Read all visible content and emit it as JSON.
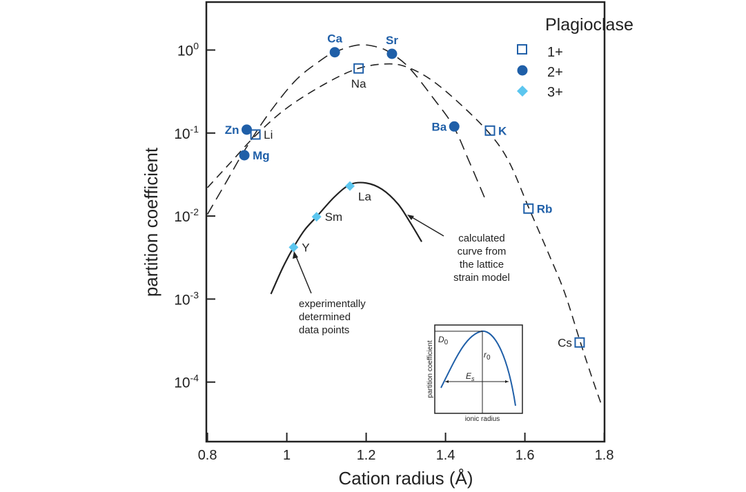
{
  "chart_data": {
    "type": "scatter",
    "title": "",
    "xlabel": "Cation radius (Å)",
    "ylabel": "partition coefficient",
    "xlim": [
      0.8,
      1.8
    ],
    "ylim_log10": [
      -4.7,
      0.58
    ],
    "yscale": "log",
    "x_ticks": [
      0.8,
      1.0,
      1.2,
      1.4,
      1.6,
      1.8
    ],
    "x_tick_labels": [
      "0.8",
      "1",
      "1.2",
      "1.4",
      "1.6",
      "1.8"
    ],
    "y_ticks": [
      {
        "exp": "0",
        "base": "10"
      },
      {
        "exp": "-1",
        "base": "10"
      },
      {
        "exp": "-2",
        "base": "10"
      },
      {
        "exp": "-3",
        "base": "10"
      },
      {
        "exp": "-4",
        "base": "10"
      }
    ],
    "legend": {
      "title": "Plagioclase",
      "placement": "top-right",
      "entries": [
        {
          "label": "1+",
          "marker": "open-square",
          "color": "#1f5fa8"
        },
        {
          "label": "2+",
          "marker": "filled-circle",
          "color": "#1f5fa8"
        },
        {
          "label": "3+",
          "marker": "diamond",
          "color": "#5cc6ef"
        }
      ]
    },
    "series": [
      {
        "name": "1+",
        "points": [
          {
            "label": "Li",
            "x": 0.921,
            "y": 0.096,
            "label_side": "right",
            "label_style": "plain"
          },
          {
            "label": "Na",
            "x": 1.181,
            "y": 0.6,
            "label_side": "below",
            "label_style": "plain"
          },
          {
            "label": "K",
            "x": 1.512,
            "y": 0.107,
            "label_side": "right",
            "label_style": "bold"
          },
          {
            "label": "Rb",
            "x": 1.609,
            "y": 0.0123,
            "label_side": "right",
            "label_style": "bold"
          },
          {
            "label": "Cs",
            "x": 1.738,
            "y": 0.0003,
            "label_side": "left",
            "label_style": "plain"
          }
        ],
        "fit_curve": [
          [
            0.8,
            0.022
          ],
          [
            0.86,
            0.045
          ],
          [
            0.92,
            0.092
          ],
          [
            1.0,
            0.2
          ],
          [
            1.1,
            0.4
          ],
          [
            1.18,
            0.6
          ],
          [
            1.25,
            0.68
          ],
          [
            1.3,
            0.63
          ],
          [
            1.36,
            0.45
          ],
          [
            1.43,
            0.24
          ],
          [
            1.51,
            0.1
          ],
          [
            1.56,
            0.045
          ],
          [
            1.61,
            0.0125
          ],
          [
            1.66,
            0.0035
          ],
          [
            1.7,
            0.0012
          ],
          [
            1.74,
            0.0003
          ],
          [
            1.77,
            0.00011
          ],
          [
            1.795,
            5e-05
          ]
        ]
      },
      {
        "name": "2+",
        "points": [
          {
            "label": "Mg",
            "x": 0.893,
            "y": 0.054,
            "label_side": "right",
            "label_style": "bold"
          },
          {
            "label": "Zn",
            "x": 0.899,
            "y": 0.11,
            "label_side": "left",
            "label_style": "bold"
          },
          {
            "label": "Ca",
            "x": 1.121,
            "y": 0.94,
            "label_side": "above",
            "label_style": "bold"
          },
          {
            "label": "Sr",
            "x": 1.265,
            "y": 0.9,
            "label_side": "above",
            "label_style": "bold"
          },
          {
            "label": "Ba",
            "x": 1.422,
            "y": 0.12,
            "label_side": "left",
            "label_style": "bold"
          }
        ],
        "fit_curve": [
          [
            0.8,
            0.0105
          ],
          [
            0.85,
            0.027
          ],
          [
            0.89,
            0.058
          ],
          [
            0.95,
            0.16
          ],
          [
            1.02,
            0.42
          ],
          [
            1.08,
            0.72
          ],
          [
            1.12,
            0.94
          ],
          [
            1.18,
            1.15
          ],
          [
            1.23,
            1.08
          ],
          [
            1.265,
            0.9
          ],
          [
            1.31,
            0.6
          ],
          [
            1.37,
            0.26
          ],
          [
            1.42,
            0.12
          ],
          [
            1.46,
            0.045
          ],
          [
            1.5,
            0.016
          ]
        ]
      },
      {
        "name": "3+",
        "points": [
          {
            "label": "Y",
            "x": 1.017,
            "y": 0.0042,
            "label_side": "right",
            "label_style": "plain"
          },
          {
            "label": "Sm",
            "x": 1.075,
            "y": 0.0098,
            "label_side": "right",
            "label_style": "plain"
          },
          {
            "label": "La",
            "x": 1.159,
            "y": 0.023,
            "label_side": "below",
            "label_style": "plain"
          }
        ],
        "fit_curve": [
          [
            0.96,
            0.00115
          ],
          [
            0.99,
            0.0024
          ],
          [
            1.017,
            0.0042
          ],
          [
            1.045,
            0.0068
          ],
          [
            1.075,
            0.0098
          ],
          [
            1.12,
            0.017
          ],
          [
            1.16,
            0.024
          ],
          [
            1.2,
            0.025
          ],
          [
            1.24,
            0.021
          ],
          [
            1.28,
            0.014
          ],
          [
            1.31,
            0.0085
          ],
          [
            1.34,
            0.0049
          ]
        ]
      }
    ],
    "annotations": [
      {
        "lines": [
          "calculated",
          "curve from",
          "the lattice",
          "strain model"
        ],
        "points_to": "3+ fit curve"
      },
      {
        "lines": [
          "experimentally",
          "determined",
          "data points"
        ],
        "points_to": "Y data point"
      }
    ],
    "inset": {
      "xlabel": "ionic radius",
      "ylabel": "partition coefficient",
      "peak_label": "D",
      "peak_sub": "0",
      "radius_label": "r",
      "radius_sub": "0",
      "width_label": "E",
      "width_sub": "s"
    }
  }
}
